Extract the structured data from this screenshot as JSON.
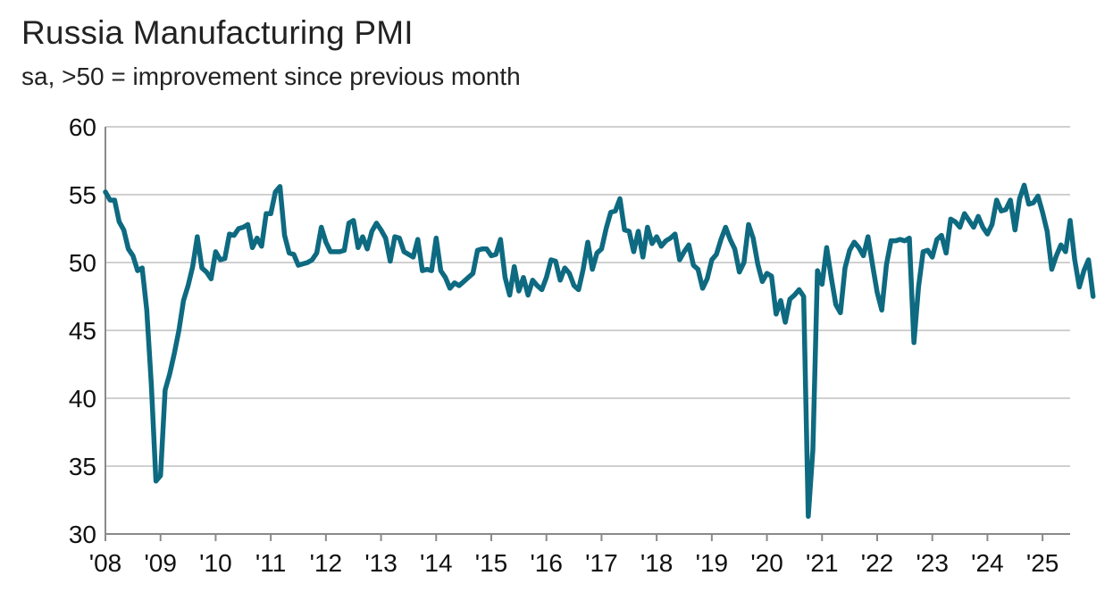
{
  "chart_data": {
    "type": "line",
    "title": "Russia Manufacturing PMI",
    "subtitle": "sa, >50 = improvement since previous month",
    "xlabel": "",
    "ylabel": "",
    "ylim": [
      30,
      60
    ],
    "yticks": [
      30,
      35,
      40,
      45,
      50,
      55,
      60
    ],
    "xlim": [
      2008.0,
      2025.5
    ],
    "xticks": [
      {
        "value": 2008,
        "label": "'08"
      },
      {
        "value": 2009,
        "label": "'09"
      },
      {
        "value": 2010,
        "label": "'10"
      },
      {
        "value": 2011,
        "label": "'11"
      },
      {
        "value": 2012,
        "label": "'12"
      },
      {
        "value": 2013,
        "label": "'13"
      },
      {
        "value": 2014,
        "label": "'14"
      },
      {
        "value": 2015,
        "label": "'15"
      },
      {
        "value": 2016,
        "label": "'16"
      },
      {
        "value": 2017,
        "label": "'17"
      },
      {
        "value": 2018,
        "label": "'18"
      },
      {
        "value": 2019,
        "label": "'19"
      },
      {
        "value": 2020,
        "label": "'20"
      },
      {
        "value": 2021,
        "label": "'21"
      },
      {
        "value": 2022,
        "label": "'22"
      },
      {
        "value": 2023,
        "label": "'23"
      },
      {
        "value": 2024,
        "label": "'24"
      },
      {
        "value": 2025,
        "label": "'25"
      }
    ],
    "grid": true,
    "legend": "none",
    "line_color": "#0e6a80",
    "grid_color": "#d0d0d0",
    "axis_color": "#8a8a8a",
    "series": [
      {
        "start": "2008-01",
        "frequency": "monthly",
        "values": [
          55.2,
          54.6,
          54.6,
          53.0,
          52.4,
          51.0,
          50.5,
          49.4,
          49.6,
          46.5,
          41.0,
          33.9,
          34.3,
          40.6,
          41.8,
          43.3,
          45.0,
          47.2,
          48.3,
          49.7,
          51.9,
          49.6,
          49.3,
          48.8,
          50.8,
          50.2,
          50.3,
          52.1,
          52.0,
          52.5,
          52.6,
          52.8,
          51.1,
          51.8,
          51.2,
          53.6,
          53.6,
          55.2,
          55.6,
          52.0,
          50.7,
          50.6,
          49.8,
          49.9,
          50.0,
          50.2,
          50.7,
          52.6,
          51.5,
          50.8,
          50.8,
          50.8,
          50.9,
          52.9,
          53.1,
          51.1,
          51.9,
          51.0,
          52.3,
          52.9,
          52.4,
          51.8,
          50.1,
          51.9,
          51.8,
          50.8,
          50.6,
          50.4,
          51.7,
          49.4,
          49.5,
          49.4,
          51.8,
          49.4,
          48.9,
          48.1,
          48.5,
          48.3,
          48.6,
          48.9,
          49.2,
          50.9,
          51.0,
          51.0,
          50.5,
          50.6,
          51.7,
          48.9,
          47.6,
          49.7,
          47.9,
          48.9,
          47.6,
          48.7,
          48.3,
          48.0,
          48.9,
          50.2,
          50.1,
          48.7,
          49.6,
          49.2,
          48.3,
          48.0,
          49.5,
          51.5,
          49.5,
          50.7,
          51.0,
          52.5,
          53.7,
          53.8,
          54.7,
          52.4,
          52.3,
          50.8,
          52.3,
          50.4,
          52.6,
          51.4,
          51.9,
          51.2,
          51.6,
          51.8,
          52.1,
          50.2,
          50.8,
          51.3,
          49.8,
          49.5,
          48.1,
          48.8,
          50.2,
          50.6,
          51.7,
          52.6,
          51.7,
          51.0,
          49.3,
          50.0,
          52.8,
          51.8,
          49.9,
          48.6,
          49.2,
          49.0,
          46.2,
          47.2,
          45.6,
          47.3,
          47.6,
          48.0,
          47.5,
          31.3,
          36.2,
          49.4,
          48.4,
          51.1,
          48.9,
          46.9,
          46.3,
          49.6,
          50.9,
          51.5,
          51.1,
          50.5,
          51.9,
          49.8,
          47.8,
          46.5,
          49.8,
          51.6,
          51.6,
          51.7,
          51.6,
          51.8,
          44.1,
          48.2,
          50.8,
          50.9,
          50.4,
          51.7,
          52.0,
          50.7,
          53.2,
          53.0,
          52.6,
          53.6,
          53.1,
          52.6,
          53.4,
          52.6,
          52.1,
          52.8,
          54.6,
          53.8,
          53.9,
          54.6,
          52.4,
          54.7,
          55.7,
          54.3,
          54.4,
          54.9,
          53.7,
          52.3,
          49.5,
          50.5,
          51.3,
          50.8,
          53.1,
          50.2,
          48.2,
          49.4,
          50.2,
          47.5
        ]
      }
    ]
  }
}
